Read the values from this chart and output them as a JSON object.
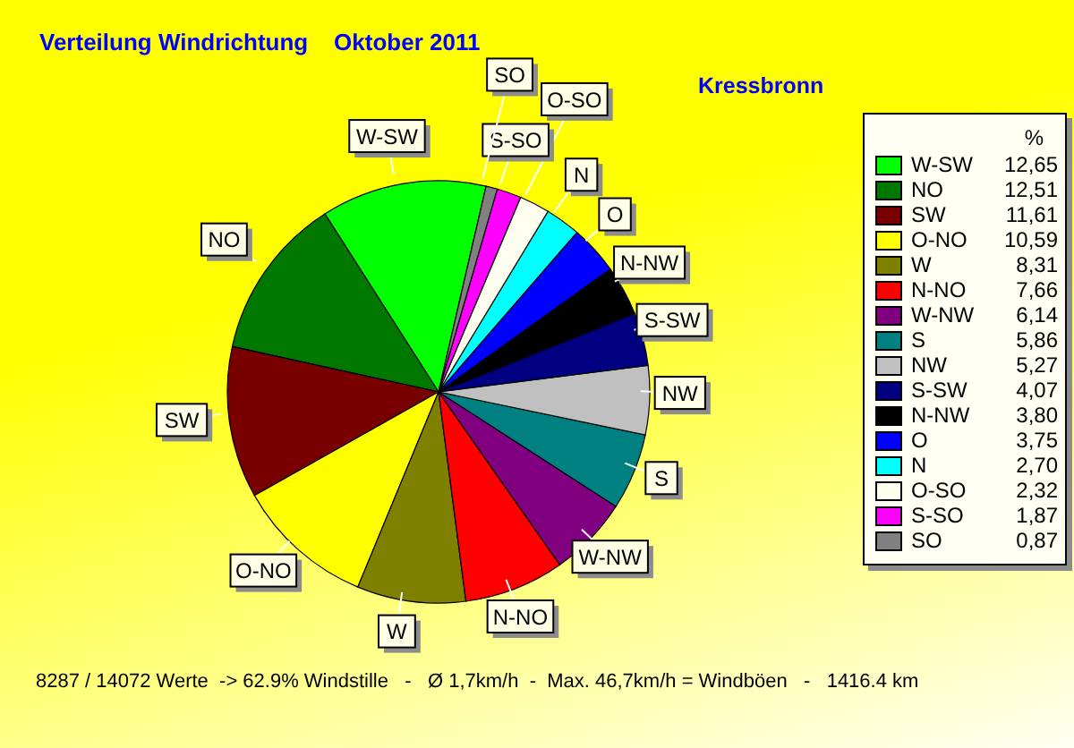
{
  "chart_data": {
    "type": "pie",
    "title": "Verteilung Windrichtung    Oktober 2011",
    "subtitle": "Kressbronn",
    "legend_title": "%",
    "categories": [
      "W-SW",
      "NO",
      "SW",
      "O-NO",
      "W",
      "N-NO",
      "W-NW",
      "S",
      "NW",
      "S-SW",
      "N-NW",
      "O",
      "N",
      "O-SO",
      "S-SO",
      "SO"
    ],
    "values": [
      12.65,
      12.51,
      11.61,
      10.59,
      8.31,
      7.66,
      6.14,
      5.86,
      5.27,
      4.07,
      3.8,
      3.75,
      2.7,
      2.32,
      1.87,
      0.87
    ],
    "value_labels": [
      "12,65",
      "12,51",
      "11,61",
      "10,59",
      "8,31",
      "7,66",
      "6,14",
      "5,86",
      "5,27",
      "4,07",
      "3,80",
      "3,75",
      "2,70",
      "2,32",
      "1,87",
      "0,87"
    ],
    "colors": [
      "#00ff00",
      "#007800",
      "#780000",
      "#ffff00",
      "#808000",
      "#ff0000",
      "#800080",
      "#008080",
      "#c0c0c0",
      "#000080",
      "#000000",
      "#0000ff",
      "#00ffff",
      "#fffff0",
      "#ff00ff",
      "#808080"
    ],
    "legend": "right",
    "annotations": [
      "8287 / 14072 Werte  -> 62.9% Windstille   -   Ø 1,7km/h  -  Max. 46,7km/h = Windböen   -   1416.4 km"
    ]
  }
}
